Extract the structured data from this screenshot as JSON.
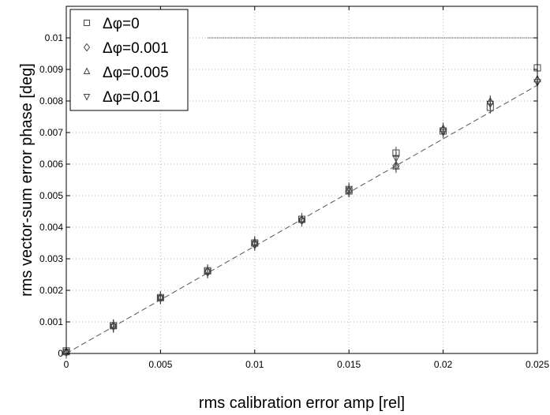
{
  "chart_data": {
    "type": "scatter",
    "title": "",
    "xlabel": "rms calibration error amp [rel]",
    "ylabel": "rms vector-sum error phase [deg]",
    "xlim": [
      0,
      0.025
    ],
    "ylim": [
      0,
      0.011
    ],
    "xticks": [
      "0",
      "0.005",
      "0.01",
      "0.015",
      "0.02",
      "0.025"
    ],
    "yticks": [
      "0",
      "0.001",
      "0.002",
      "0.003",
      "0.004",
      "0.005",
      "0.006",
      "0.007",
      "0.008",
      "0.009",
      "0.01"
    ],
    "grid": true,
    "legend_position": "top-left",
    "x": [
      0,
      0.0025,
      0.005,
      0.0075,
      0.01,
      0.0125,
      0.015,
      0.0175,
      0.02,
      0.0225,
      0.025
    ],
    "series": [
      {
        "name": "0",
        "marker": "square",
        "values": [
          8e-05,
          0.00088,
          0.00177,
          0.00262,
          0.0035,
          0.00425,
          0.00515,
          0.00635,
          0.00705,
          0.0078,
          0.00905
        ]
      },
      {
        "name": "0.001",
        "marker": "diamond",
        "values": [
          4e-05,
          0.00087,
          0.00176,
          0.00258,
          0.00345,
          0.00422,
          0.00515,
          0.00595,
          0.00708,
          0.00795,
          0.00865
        ]
      },
      {
        "name": "0.005",
        "marker": "triangle-up",
        "values": [
          3e-05,
          0.00088,
          0.00177,
          0.00262,
          0.00352,
          0.00425,
          0.00518,
          0.00592,
          0.00712,
          0.00798,
          0.00868
        ]
      },
      {
        "name": "0.01",
        "marker": "triangle-down",
        "values": [
          6e-05,
          0.00086,
          0.00176,
          0.0026,
          0.00348,
          0.00422,
          0.00522,
          0.0062,
          0.00702,
          0.00792,
          0.0086
        ]
      }
    ],
    "legend_prefix": "Δφ=",
    "fit_line": {
      "style": "dashed",
      "x": [
        0,
        0.025
      ],
      "y": [
        0,
        0.0085
      ]
    },
    "reference_line": {
      "style": "dotted",
      "x": [
        0.0075,
        0.025
      ],
      "y": [
        0.01,
        0.01
      ]
    },
    "colors": {
      "markers": "#444444",
      "fit_line": "#555555",
      "grid": "#bbbbbb",
      "axes": "#000000"
    }
  }
}
